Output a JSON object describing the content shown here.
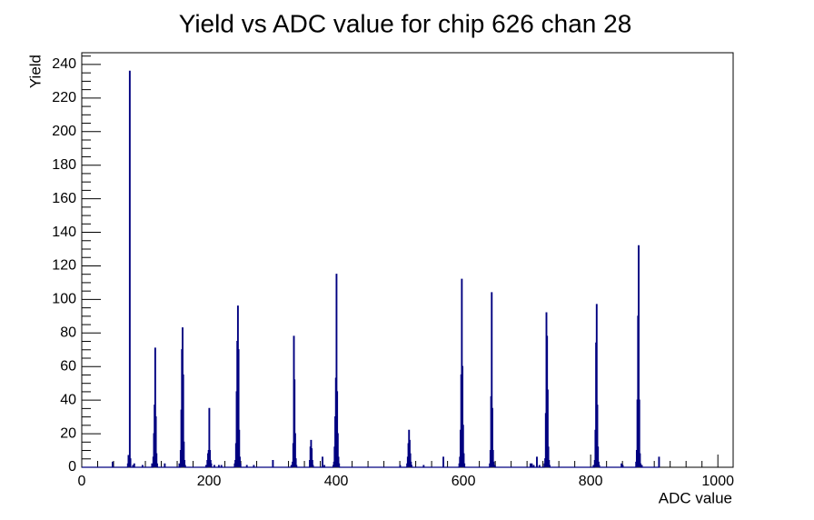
{
  "colors": {
    "histogram": "#000080",
    "axes": "#000000",
    "background": "#ffffff"
  },
  "chart_data": {
    "type": "bar",
    "title": "Yield vs ADC value for chip 626 chan 28",
    "xlabel": "ADC value",
    "ylabel": "Yield",
    "xlim": [
      0,
      1024
    ],
    "ylim": [
      0,
      247
    ],
    "grid": false,
    "x_ticks": [
      0,
      200,
      400,
      600,
      800,
      1000
    ],
    "x_tick_labels": [
      "0",
      "200",
      "400",
      "600",
      "800",
      "1000"
    ],
    "y_ticks": [
      0,
      20,
      40,
      60,
      80,
      100,
      120,
      140,
      160,
      180,
      200,
      220,
      240
    ],
    "y_tick_labels": [
      "0",
      "20",
      "40",
      "60",
      "80",
      "100",
      "120",
      "140",
      "160",
      "180",
      "200",
      "220",
      "240"
    ],
    "bins": [
      [
        48,
        3
      ],
      [
        72,
        2
      ],
      [
        73,
        7
      ],
      [
        74,
        4
      ],
      [
        75,
        236
      ],
      [
        76,
        5
      ],
      [
        80,
        1
      ],
      [
        82,
        2
      ],
      [
        95,
        1
      ],
      [
        110,
        2
      ],
      [
        112,
        6
      ],
      [
        113,
        20
      ],
      [
        114,
        37
      ],
      [
        115,
        71
      ],
      [
        116,
        30
      ],
      [
        117,
        8
      ],
      [
        118,
        2
      ],
      [
        130,
        2
      ],
      [
        153,
        2
      ],
      [
        155,
        10
      ],
      [
        156,
        34
      ],
      [
        157,
        70
      ],
      [
        158,
        83
      ],
      [
        159,
        55
      ],
      [
        160,
        15
      ],
      [
        161,
        4
      ],
      [
        162,
        1
      ],
      [
        195,
        1
      ],
      [
        197,
        4
      ],
      [
        198,
        8
      ],
      [
        199,
        10
      ],
      [
        200,
        35
      ],
      [
        201,
        10
      ],
      [
        202,
        4
      ],
      [
        203,
        2
      ],
      [
        208,
        1
      ],
      [
        215,
        1
      ],
      [
        219,
        1
      ],
      [
        240,
        2
      ],
      [
        241,
        4
      ],
      [
        242,
        14
      ],
      [
        243,
        45
      ],
      [
        244,
        75
      ],
      [
        245,
        96
      ],
      [
        246,
        70
      ],
      [
        247,
        22
      ],
      [
        248,
        6
      ],
      [
        249,
        2
      ],
      [
        259,
        1
      ],
      [
        270,
        1
      ],
      [
        300,
        4
      ],
      [
        329,
        1
      ],
      [
        331,
        3
      ],
      [
        332,
        14
      ],
      [
        333,
        78
      ],
      [
        334,
        52
      ],
      [
        335,
        20
      ],
      [
        336,
        5
      ],
      [
        337,
        1
      ],
      [
        358,
        4
      ],
      [
        359,
        12
      ],
      [
        360,
        16
      ],
      [
        361,
        11
      ],
      [
        362,
        4
      ],
      [
        363,
        1
      ],
      [
        378,
        6
      ],
      [
        381,
        1
      ],
      [
        395,
        1
      ],
      [
        396,
        3
      ],
      [
        397,
        12
      ],
      [
        398,
        30
      ],
      [
        399,
        53
      ],
      [
        400,
        115
      ],
      [
        401,
        45
      ],
      [
        402,
        20
      ],
      [
        403,
        6
      ],
      [
        404,
        2
      ],
      [
        500,
        1
      ],
      [
        511,
        2
      ],
      [
        512,
        6
      ],
      [
        513,
        14
      ],
      [
        514,
        22
      ],
      [
        515,
        16
      ],
      [
        516,
        8
      ],
      [
        517,
        3
      ],
      [
        518,
        1
      ],
      [
        537,
        1
      ],
      [
        568,
        6
      ],
      [
        593,
        2
      ],
      [
        594,
        6
      ],
      [
        595,
        22
      ],
      [
        596,
        55
      ],
      [
        597,
        112
      ],
      [
        598,
        60
      ],
      [
        599,
        25
      ],
      [
        600,
        8
      ],
      [
        601,
        2
      ],
      [
        641,
        2
      ],
      [
        642,
        10
      ],
      [
        643,
        42
      ],
      [
        644,
        104
      ],
      [
        645,
        35
      ],
      [
        646,
        10
      ],
      [
        647,
        3
      ],
      [
        648,
        1
      ],
      [
        649,
        1
      ],
      [
        705,
        2
      ],
      [
        707,
        2
      ],
      [
        710,
        1
      ],
      [
        715,
        6
      ],
      [
        719,
        1
      ],
      [
        727,
        2
      ],
      [
        728,
        5
      ],
      [
        729,
        32
      ],
      [
        730,
        92
      ],
      [
        731,
        78
      ],
      [
        732,
        46
      ],
      [
        733,
        12
      ],
      [
        734,
        4
      ],
      [
        735,
        1
      ],
      [
        804,
        1
      ],
      [
        806,
        4
      ],
      [
        807,
        22
      ],
      [
        808,
        74
      ],
      [
        809,
        97
      ],
      [
        810,
        37
      ],
      [
        811,
        12
      ],
      [
        812,
        3
      ],
      [
        813,
        1
      ],
      [
        848,
        2
      ],
      [
        850,
        1
      ],
      [
        871,
        3
      ],
      [
        872,
        10
      ],
      [
        873,
        40
      ],
      [
        874,
        90
      ],
      [
        875,
        132
      ],
      [
        876,
        40
      ],
      [
        877,
        8
      ],
      [
        878,
        2
      ],
      [
        880,
        1
      ],
      [
        907,
        6
      ]
    ]
  }
}
